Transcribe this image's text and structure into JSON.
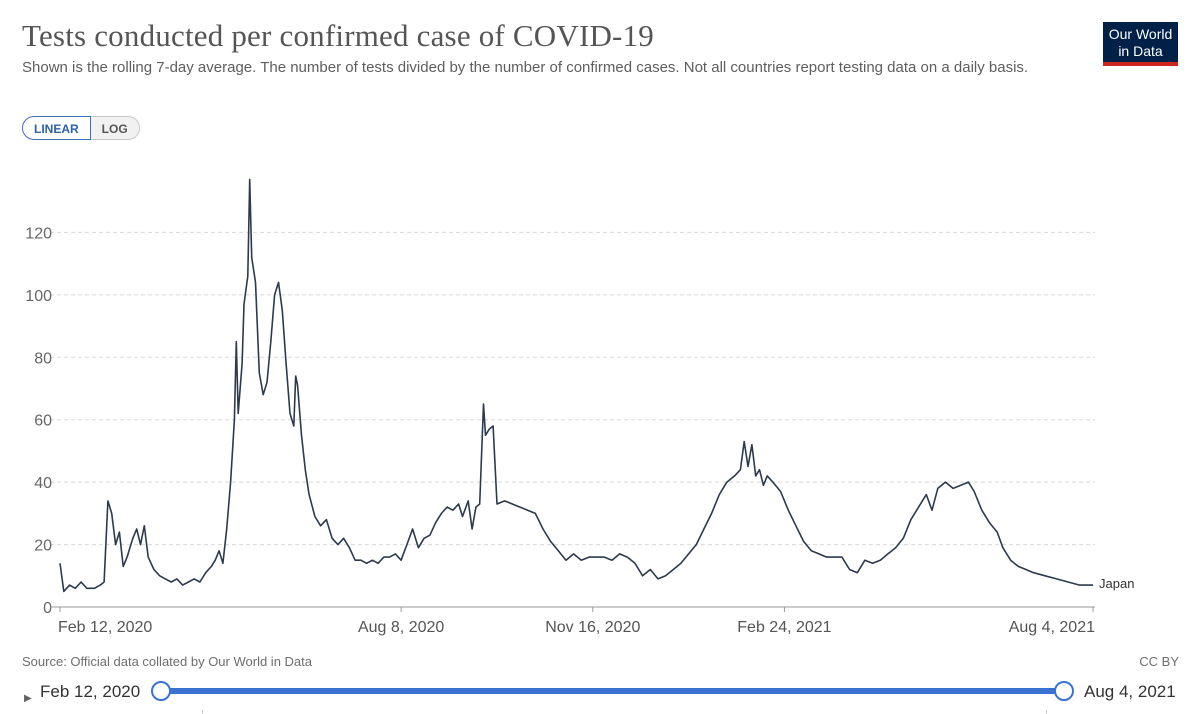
{
  "header": {
    "title": "Tests conducted per confirmed case of COVID-19",
    "subtitle": "Shown is the rolling 7-day average. The number of tests divided by the number of confirmed cases. Not all countries report testing data on a daily basis.",
    "logo_line1": "Our World",
    "logo_line2": "in Data"
  },
  "controls": {
    "linear_label": "LINEAR",
    "log_label": "LOG",
    "active_scale": "LINEAR"
  },
  "footer": {
    "source": "Source: Official data collated by Our World in Data",
    "license": "CC BY"
  },
  "timeline": {
    "start_label": "Feb 12, 2020",
    "end_label": "Aug 4, 2021",
    "start_value": 0,
    "end_value": 1
  },
  "colors": {
    "line": "#2d3a4d",
    "grid": "#d8d8d8",
    "accent": "#3b72d1"
  },
  "chart_data": {
    "type": "line",
    "title": "Tests conducted per confirmed case of COVID-19",
    "xlabel": "",
    "ylabel": "",
    "ylim": [
      0,
      140
    ],
    "y_ticks": [
      0,
      20,
      40,
      60,
      80,
      100,
      120
    ],
    "x_domain": [
      "2020-02-12",
      "2021-08-04"
    ],
    "x_ticks": [
      {
        "date": "2020-02-12",
        "label": "Feb 12, 2020"
      },
      {
        "date": "2020-08-08",
        "label": "Aug 8, 2020"
      },
      {
        "date": "2020-11-16",
        "label": "Nov 16, 2020"
      },
      {
        "date": "2021-02-24",
        "label": "Feb 24, 2021"
      },
      {
        "date": "2021-08-04",
        "label": "Aug 4, 2021"
      }
    ],
    "grid": true,
    "series": [
      {
        "name": "Japan",
        "label": "Japan",
        "points": [
          [
            "2020-02-12",
            14
          ],
          [
            "2020-02-14",
            5
          ],
          [
            "2020-02-17",
            7
          ],
          [
            "2020-02-20",
            6
          ],
          [
            "2020-02-23",
            8
          ],
          [
            "2020-02-26",
            6
          ],
          [
            "2020-03-01",
            6
          ],
          [
            "2020-03-04",
            7
          ],
          [
            "2020-03-06",
            8
          ],
          [
            "2020-03-08",
            34
          ],
          [
            "2020-03-10",
            30
          ],
          [
            "2020-03-12",
            20
          ],
          [
            "2020-03-14",
            24
          ],
          [
            "2020-03-16",
            13
          ],
          [
            "2020-03-18",
            16
          ],
          [
            "2020-03-21",
            22
          ],
          [
            "2020-03-23",
            25
          ],
          [
            "2020-03-25",
            20
          ],
          [
            "2020-03-27",
            26
          ],
          [
            "2020-03-29",
            16
          ],
          [
            "2020-04-01",
            12
          ],
          [
            "2020-04-04",
            10
          ],
          [
            "2020-04-07",
            9
          ],
          [
            "2020-04-10",
            8
          ],
          [
            "2020-04-13",
            9
          ],
          [
            "2020-04-16",
            7
          ],
          [
            "2020-04-19",
            8
          ],
          [
            "2020-04-22",
            9
          ],
          [
            "2020-04-25",
            8
          ],
          [
            "2020-04-28",
            11
          ],
          [
            "2020-05-01",
            13
          ],
          [
            "2020-05-03",
            15
          ],
          [
            "2020-05-05",
            18
          ],
          [
            "2020-05-07",
            14
          ],
          [
            "2020-05-09",
            25
          ],
          [
            "2020-05-11",
            40
          ],
          [
            "2020-05-13",
            60
          ],
          [
            "2020-05-14",
            85
          ],
          [
            "2020-05-15",
            62
          ],
          [
            "2020-05-17",
            78
          ],
          [
            "2020-05-18",
            97
          ],
          [
            "2020-05-20",
            106
          ],
          [
            "2020-05-21",
            137
          ],
          [
            "2020-05-22",
            112
          ],
          [
            "2020-05-24",
            104
          ],
          [
            "2020-05-26",
            75
          ],
          [
            "2020-05-28",
            68
          ],
          [
            "2020-05-30",
            72
          ],
          [
            "2020-06-01",
            85
          ],
          [
            "2020-06-03",
            100
          ],
          [
            "2020-06-05",
            104
          ],
          [
            "2020-06-07",
            95
          ],
          [
            "2020-06-09",
            78
          ],
          [
            "2020-06-11",
            62
          ],
          [
            "2020-06-13",
            58
          ],
          [
            "2020-06-14",
            74
          ],
          [
            "2020-06-15",
            71
          ],
          [
            "2020-06-17",
            55
          ],
          [
            "2020-06-19",
            44
          ],
          [
            "2020-06-21",
            36
          ],
          [
            "2020-06-24",
            29
          ],
          [
            "2020-06-27",
            26
          ],
          [
            "2020-06-30",
            28
          ],
          [
            "2020-07-03",
            22
          ],
          [
            "2020-07-06",
            20
          ],
          [
            "2020-07-09",
            22
          ],
          [
            "2020-07-12",
            19
          ],
          [
            "2020-07-15",
            15
          ],
          [
            "2020-07-18",
            15
          ],
          [
            "2020-07-21",
            14
          ],
          [
            "2020-07-24",
            15
          ],
          [
            "2020-07-27",
            14
          ],
          [
            "2020-07-30",
            16
          ],
          [
            "2020-08-02",
            16
          ],
          [
            "2020-08-05",
            17
          ],
          [
            "2020-08-08",
            15
          ],
          [
            "2020-08-11",
            20
          ],
          [
            "2020-08-14",
            25
          ],
          [
            "2020-08-17",
            19
          ],
          [
            "2020-08-20",
            22
          ],
          [
            "2020-08-23",
            23
          ],
          [
            "2020-08-26",
            27
          ],
          [
            "2020-08-29",
            30
          ],
          [
            "2020-09-01",
            32
          ],
          [
            "2020-09-04",
            31
          ],
          [
            "2020-09-07",
            33
          ],
          [
            "2020-09-09",
            29
          ],
          [
            "2020-09-12",
            34
          ],
          [
            "2020-09-14",
            25
          ],
          [
            "2020-09-16",
            32
          ],
          [
            "2020-09-18",
            33
          ],
          [
            "2020-09-20",
            65
          ],
          [
            "2020-09-21",
            55
          ],
          [
            "2020-09-23",
            57
          ],
          [
            "2020-09-25",
            58
          ],
          [
            "2020-09-27",
            33
          ],
          [
            "2020-10-01",
            34
          ],
          [
            "2020-10-05",
            33
          ],
          [
            "2020-10-09",
            32
          ],
          [
            "2020-10-13",
            31
          ],
          [
            "2020-10-17",
            30
          ],
          [
            "2020-10-21",
            25
          ],
          [
            "2020-10-25",
            21
          ],
          [
            "2020-10-29",
            18
          ],
          [
            "2020-11-02",
            15
          ],
          [
            "2020-11-06",
            17
          ],
          [
            "2020-11-10",
            15
          ],
          [
            "2020-11-14",
            16
          ],
          [
            "2020-11-18",
            16
          ],
          [
            "2020-11-22",
            16
          ],
          [
            "2020-11-26",
            15
          ],
          [
            "2020-11-30",
            17
          ],
          [
            "2020-12-04",
            16
          ],
          [
            "2020-12-08",
            14
          ],
          [
            "2020-12-12",
            10
          ],
          [
            "2020-12-16",
            12
          ],
          [
            "2020-12-20",
            9
          ],
          [
            "2020-12-24",
            10
          ],
          [
            "2020-12-28",
            12
          ],
          [
            "2021-01-01",
            14
          ],
          [
            "2021-01-05",
            17
          ],
          [
            "2021-01-09",
            20
          ],
          [
            "2021-01-13",
            25
          ],
          [
            "2021-01-17",
            30
          ],
          [
            "2021-01-21",
            36
          ],
          [
            "2021-01-25",
            40
          ],
          [
            "2021-01-29",
            42
          ],
          [
            "2021-02-01",
            44
          ],
          [
            "2021-02-03",
            53
          ],
          [
            "2021-02-05",
            45
          ],
          [
            "2021-02-07",
            52
          ],
          [
            "2021-02-09",
            42
          ],
          [
            "2021-02-11",
            44
          ],
          [
            "2021-02-13",
            39
          ],
          [
            "2021-02-15",
            42
          ],
          [
            "2021-02-18",
            40
          ],
          [
            "2021-02-22",
            37
          ],
          [
            "2021-02-26",
            31
          ],
          [
            "2021-03-02",
            26
          ],
          [
            "2021-03-06",
            21
          ],
          [
            "2021-03-10",
            18
          ],
          [
            "2021-03-14",
            17
          ],
          [
            "2021-03-18",
            16
          ],
          [
            "2021-03-22",
            16
          ],
          [
            "2021-03-26",
            16
          ],
          [
            "2021-03-30",
            12
          ],
          [
            "2021-04-03",
            11
          ],
          [
            "2021-04-07",
            15
          ],
          [
            "2021-04-11",
            14
          ],
          [
            "2021-04-15",
            15
          ],
          [
            "2021-04-19",
            17
          ],
          [
            "2021-04-23",
            19
          ],
          [
            "2021-04-27",
            22
          ],
          [
            "2021-05-01",
            28
          ],
          [
            "2021-05-05",
            32
          ],
          [
            "2021-05-09",
            36
          ],
          [
            "2021-05-12",
            31
          ],
          [
            "2021-05-15",
            38
          ],
          [
            "2021-05-19",
            40
          ],
          [
            "2021-05-23",
            38
          ],
          [
            "2021-05-27",
            39
          ],
          [
            "2021-05-31",
            40
          ],
          [
            "2021-06-03",
            37
          ],
          [
            "2021-06-07",
            31
          ],
          [
            "2021-06-11",
            27
          ],
          [
            "2021-06-15",
            24
          ],
          [
            "2021-06-18",
            19
          ],
          [
            "2021-06-22",
            15
          ],
          [
            "2021-06-26",
            13
          ],
          [
            "2021-06-30",
            12
          ],
          [
            "2021-07-04",
            11
          ],
          [
            "2021-07-10",
            10
          ],
          [
            "2021-07-16",
            9
          ],
          [
            "2021-07-22",
            8
          ],
          [
            "2021-07-28",
            7
          ],
          [
            "2021-08-04",
            7
          ]
        ]
      }
    ]
  }
}
